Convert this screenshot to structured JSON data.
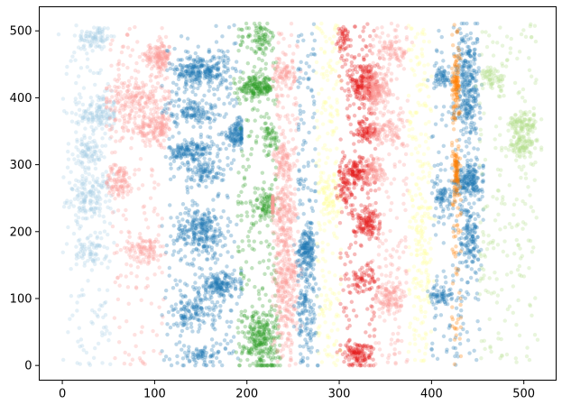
{
  "chart_data": {
    "type": "scatter",
    "title": "",
    "xlabel": "",
    "ylabel": "",
    "xlim": [
      -25,
      535
    ],
    "ylim": [
      -22,
      536
    ],
    "grid": false,
    "legend": "none",
    "x_ticks": [
      0,
      100,
      200,
      300,
      400,
      500
    ],
    "y_ticks": [
      0,
      100,
      200,
      300,
      400,
      500
    ],
    "x_tick_labels": [
      "0",
      "100",
      "200",
      "300",
      "400",
      "500"
    ],
    "y_tick_labels": [
      "0",
      "100",
      "200",
      "300",
      "400",
      "500"
    ],
    "marker_opacity": 0.3,
    "series": [
      {
        "color": "#a6cee3",
        "x_range": [
          0,
          52
        ],
        "background_density": 180,
        "clusters": [
          {
            "x": 35,
            "y": 490,
            "sx": 10,
            "sy": 10,
            "n": 80
          },
          {
            "x": 40,
            "y": 375,
            "sx": 10,
            "sy": 15,
            "n": 130
          },
          {
            "x": 28,
            "y": 320,
            "sx": 8,
            "sy": 10,
            "n": 70
          },
          {
            "x": 30,
            "y": 250,
            "sx": 12,
            "sy": 18,
            "n": 140
          },
          {
            "x": 32,
            "y": 170,
            "sx": 8,
            "sy": 10,
            "n": 60
          }
        ]
      },
      {
        "color": "#fb9a99",
        "x_range": [
          52,
          112
        ],
        "background_density": 200,
        "clusters": [
          {
            "x": 100,
            "y": 460,
            "sx": 10,
            "sy": 10,
            "n": 90
          },
          {
            "x": 80,
            "y": 400,
            "sx": 18,
            "sy": 14,
            "n": 160
          },
          {
            "x": 90,
            "y": 355,
            "sx": 14,
            "sy": 10,
            "n": 110
          },
          {
            "x": 62,
            "y": 275,
            "sx": 8,
            "sy": 12,
            "n": 90
          },
          {
            "x": 90,
            "y": 175,
            "sx": 10,
            "sy": 10,
            "n": 90
          },
          {
            "x": 108,
            "y": 360,
            "sx": 4,
            "sy": 15,
            "n": 60
          },
          {
            "x": 108,
            "y": 460,
            "sx": 4,
            "sy": 12,
            "n": 60
          }
        ]
      },
      {
        "color": "#1f78b4",
        "x_range": [
          112,
          190
        ],
        "background_density": 240,
        "clusters": [
          {
            "x": 150,
            "y": 440,
            "sx": 15,
            "sy": 12,
            "n": 260
          },
          {
            "x": 140,
            "y": 380,
            "sx": 14,
            "sy": 10,
            "n": 120
          },
          {
            "x": 140,
            "y": 320,
            "sx": 12,
            "sy": 10,
            "n": 150
          },
          {
            "x": 155,
            "y": 290,
            "sx": 10,
            "sy": 8,
            "n": 80
          },
          {
            "x": 150,
            "y": 200,
            "sx": 14,
            "sy": 18,
            "n": 250
          },
          {
            "x": 170,
            "y": 120,
            "sx": 12,
            "sy": 10,
            "n": 170
          },
          {
            "x": 140,
            "y": 80,
            "sx": 14,
            "sy": 12,
            "n": 120
          },
          {
            "x": 150,
            "y": 15,
            "sx": 18,
            "sy": 8,
            "n": 70
          },
          {
            "x": 190,
            "y": 345,
            "sx": 8,
            "sy": 10,
            "n": 120
          }
        ]
      },
      {
        "color": "#33a02c",
        "x_range": [
          190,
          232
        ],
        "background_density": 220,
        "clusters": [
          {
            "x": 210,
            "y": 415,
            "sx": 10,
            "sy": 8,
            "n": 180
          },
          {
            "x": 215,
            "y": 490,
            "sx": 8,
            "sy": 10,
            "n": 70
          },
          {
            "x": 220,
            "y": 240,
            "sx": 6,
            "sy": 12,
            "n": 90
          },
          {
            "x": 225,
            "y": 340,
            "sx": 4,
            "sy": 12,
            "n": 50
          },
          {
            "x": 216,
            "y": 40,
            "sx": 10,
            "sy": 25,
            "n": 260
          }
        ]
      },
      {
        "color": "#fb9a99",
        "x_range": [
          232,
          255
        ],
        "background_density": 150,
        "clusters": [
          {
            "x": 240,
            "y": 435,
            "sx": 6,
            "sy": 12,
            "n": 80
          },
          {
            "x": 240,
            "y": 305,
            "sx": 6,
            "sy": 12,
            "n": 80
          },
          {
            "x": 240,
            "y": 230,
            "sx": 6,
            "sy": 25,
            "n": 120
          },
          {
            "x": 242,
            "y": 120,
            "sx": 7,
            "sy": 45,
            "n": 250
          },
          {
            "x": 212,
            "y": 240,
            "sx": 3,
            "sy": 8,
            "n": 40
          }
        ]
      },
      {
        "color": "#1f78b4",
        "x_range": [
          255,
          275
        ],
        "background_density": 160,
        "clusters": [
          {
            "x": 265,
            "y": 175,
            "sx": 5,
            "sy": 15,
            "n": 150
          },
          {
            "x": 265,
            "y": 80,
            "sx": 6,
            "sy": 30,
            "n": 90
          }
        ]
      },
      {
        "color": "#ffff99",
        "x_range": [
          275,
          302
        ],
        "background_density": 210,
        "clusters": [
          {
            "x": 290,
            "y": 250,
            "sx": 6,
            "sy": 20,
            "n": 60
          }
        ]
      },
      {
        "color": "#e31a1c",
        "x_range": [
          300,
          340
        ],
        "background_density": 220,
        "clusters": [
          {
            "x": 328,
            "y": 420,
            "sx": 8,
            "sy": 18,
            "n": 200
          },
          {
            "x": 330,
            "y": 350,
            "sx": 6,
            "sy": 8,
            "n": 80
          },
          {
            "x": 318,
            "y": 290,
            "sx": 7,
            "sy": 10,
            "n": 120
          },
          {
            "x": 305,
            "y": 265,
            "sx": 4,
            "sy": 10,
            "n": 50
          },
          {
            "x": 330,
            "y": 215,
            "sx": 8,
            "sy": 12,
            "n": 130
          },
          {
            "x": 325,
            "y": 130,
            "sx": 8,
            "sy": 10,
            "n": 60
          },
          {
            "x": 320,
            "y": 15,
            "sx": 8,
            "sy": 10,
            "n": 110
          },
          {
            "x": 305,
            "y": 490,
            "sx": 4,
            "sy": 10,
            "n": 40
          }
        ]
      },
      {
        "color": "#fb9a99",
        "x_range": [
          332,
          375
        ],
        "background_density": 200,
        "clusters": [
          {
            "x": 340,
            "y": 410,
            "sx": 8,
            "sy": 14,
            "n": 160
          },
          {
            "x": 350,
            "y": 350,
            "sx": 10,
            "sy": 10,
            "n": 80
          },
          {
            "x": 340,
            "y": 290,
            "sx": 6,
            "sy": 12,
            "n": 80
          },
          {
            "x": 355,
            "y": 100,
            "sx": 8,
            "sy": 12,
            "n": 110
          },
          {
            "x": 360,
            "y": 470,
            "sx": 8,
            "sy": 12,
            "n": 70
          }
        ]
      },
      {
        "color": "#ffff99",
        "x_range": [
          375,
          400
        ],
        "background_density": 200,
        "clusters": [
          {
            "x": 390,
            "y": 190,
            "sx": 6,
            "sy": 40,
            "n": 60
          }
        ]
      },
      {
        "color": "#1f78b4",
        "x_range": [
          400,
          452
        ],
        "background_density": 220,
        "clusters": [
          {
            "x": 440,
            "y": 410,
            "sx": 6,
            "sy": 40,
            "n": 260
          },
          {
            "x": 440,
            "y": 275,
            "sx": 8,
            "sy": 12,
            "n": 170
          },
          {
            "x": 442,
            "y": 200,
            "sx": 5,
            "sy": 30,
            "n": 130
          },
          {
            "x": 410,
            "y": 105,
            "sx": 6,
            "sy": 6,
            "n": 60
          },
          {
            "x": 412,
            "y": 255,
            "sx": 5,
            "sy": 8,
            "n": 50
          },
          {
            "x": 410,
            "y": 430,
            "sx": 5,
            "sy": 8,
            "n": 50
          }
        ]
      },
      {
        "color": "#ff7f00",
        "x_range": [
          422,
          432
        ],
        "background_density": 100,
        "clusters": [
          {
            "x": 427,
            "y": 420,
            "sx": 2,
            "sy": 20,
            "n": 80
          },
          {
            "x": 427,
            "y": 290,
            "sx": 2,
            "sy": 20,
            "n": 70
          }
        ]
      },
      {
        "color": "#b2df8a",
        "x_range": [
          452,
          515
        ],
        "background_density": 220,
        "clusters": [
          {
            "x": 465,
            "y": 430,
            "sx": 8,
            "sy": 8,
            "n": 60
          },
          {
            "x": 500,
            "y": 360,
            "sx": 8,
            "sy": 10,
            "n": 110
          },
          {
            "x": 498,
            "y": 325,
            "sx": 8,
            "sy": 8,
            "n": 80
          }
        ]
      }
    ]
  }
}
